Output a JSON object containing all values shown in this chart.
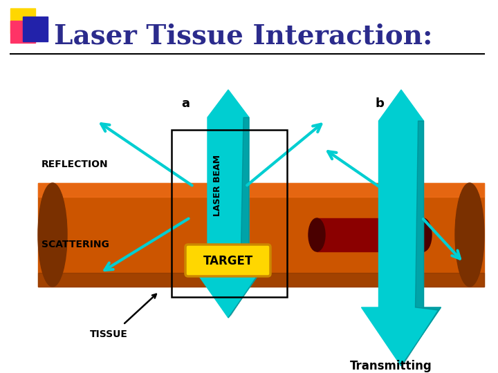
{
  "title": "Laser Tissue Interaction:",
  "title_color": "#2B2B8C",
  "title_fontsize": 28,
  "bg_color": "#FFFFFF",
  "tissue_color": "#CC5500",
  "tissue_shadow_color": "#7A3000",
  "tissue_highlight_color": "#FF7722",
  "laser_color": "#00CED1",
  "laser_dark_color": "#007A80",
  "target_fill": "#FFD700",
  "target_border": "#CC8800",
  "blood_vessel_color": "#8B0000",
  "blood_vessel_dark": "#4A0000",
  "label_reflection": "REFLECTION",
  "label_scattering": "SCATTERING",
  "label_tissue": "TISSUE",
  "label_target": "TARGET",
  "label_laser_beam": "LASER BEAM",
  "label_a": "a",
  "label_b": "b",
  "label_transmitting": "Transmitting",
  "logo_yellow": "#FFD700",
  "logo_pink": "#FF3366",
  "logo_blue": "#2222AA"
}
